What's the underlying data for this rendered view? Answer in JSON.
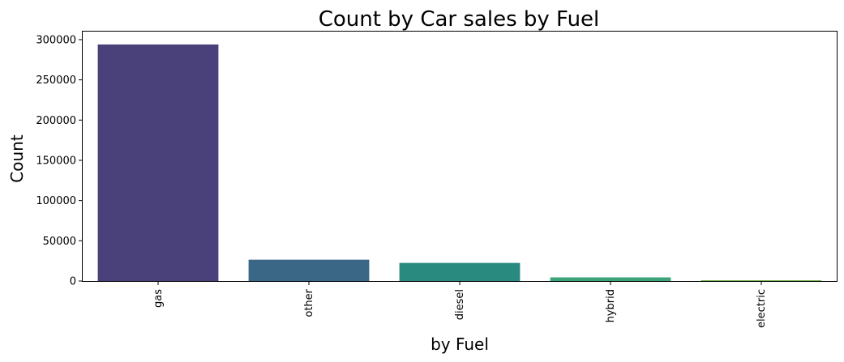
{
  "chart_data": {
    "type": "bar",
    "title": "Count by Car sales by Fuel",
    "xlabel": "by Fuel",
    "ylabel": "Count",
    "categories": [
      "gas",
      "other",
      "diesel",
      "hybrid",
      "electric"
    ],
    "values": [
      294000,
      26500,
      22500,
      4500,
      1000
    ],
    "colors": [
      "#4b417a",
      "#3b6787",
      "#298b7f",
      "#3ca479",
      "#73b550"
    ],
    "ylim": [
      0,
      310000
    ],
    "yticks": [
      0,
      50000,
      100000,
      150000,
      200000,
      250000,
      300000
    ],
    "ytick_labels": [
      "0",
      "50000",
      "100000",
      "150000",
      "200000",
      "250000",
      "300000"
    ],
    "grid": false,
    "legend": false
  }
}
